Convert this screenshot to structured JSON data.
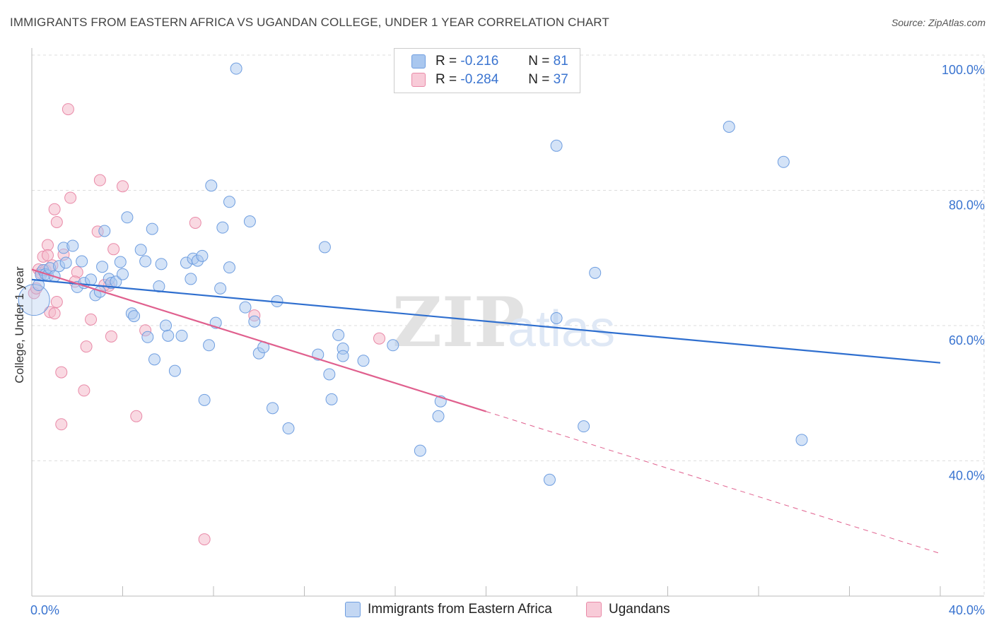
{
  "title": "IMMIGRANTS FROM EASTERN AFRICA VS UGANDAN COLLEGE, UNDER 1 YEAR CORRELATION CHART",
  "source": "Source: ZipAtlas.com",
  "watermark": {
    "zip": "ZIP",
    "atlas": "atlas"
  },
  "legend": {
    "series1": {
      "r_label": "R =",
      "r_value": "-0.216",
      "n_label": "N =",
      "n_value": "81"
    },
    "series2": {
      "r_label": "R =",
      "r_value": "-0.284",
      "n_label": "N =",
      "n_value": "37"
    }
  },
  "bottom_legend": {
    "series1": "Immigrants from Eastern Africa",
    "series2": "Ugandans"
  },
  "colors": {
    "series1_fill": "#a9c7ef",
    "series1_stroke": "#6f9ee0",
    "series1_line": "#2f6fcf",
    "series2_fill": "#f4b9cb",
    "series2_stroke": "#e98aa8",
    "series2_line": "#e0608e",
    "grid": "#dddddd",
    "tick_label": "#3a74d0"
  },
  "chart_data": {
    "type": "scatter",
    "title": "IMMIGRANTS FROM EASTERN AFRICA VS UGANDAN COLLEGE, UNDER 1 YEAR CORRELATION CHART",
    "xlabel": "",
    "ylabel": "College, Under 1 year",
    "xlim": [
      0,
      40
    ],
    "ylim": [
      20,
      100
    ],
    "x_tick_labels": [
      "0.0%",
      "40.0%"
    ],
    "y_ticks": [
      40,
      60,
      80,
      100
    ],
    "y_tick_labels": [
      "40.0%",
      "60.0%",
      "80.0%",
      "100.0%"
    ],
    "grid": true,
    "series": [
      {
        "name": "Immigrants from Eastern Africa",
        "points": [
          [
            0.1,
            63.8
          ],
          [
            0.4,
            67.5
          ],
          [
            0.5,
            68.2
          ],
          [
            0.6,
            67.6
          ],
          [
            0.7,
            67.4
          ],
          [
            0.8,
            68.5
          ],
          [
            1.0,
            67.3
          ],
          [
            1.2,
            68.8
          ],
          [
            1.4,
            71.5
          ],
          [
            1.5,
            69.3
          ],
          [
            1.8,
            71.8
          ],
          [
            2.0,
            65.7
          ],
          [
            2.2,
            69.5
          ],
          [
            2.3,
            66.3
          ],
          [
            2.6,
            66.8
          ],
          [
            2.8,
            64.5
          ],
          [
            3.0,
            65.0
          ],
          [
            3.1,
            68.7
          ],
          [
            3.2,
            74.0
          ],
          [
            3.4,
            66.9
          ],
          [
            3.5,
            66.3
          ],
          [
            3.7,
            66.5
          ],
          [
            3.9,
            69.4
          ],
          [
            4.0,
            67.6
          ],
          [
            4.2,
            76.0
          ],
          [
            4.4,
            61.8
          ],
          [
            4.5,
            61.4
          ],
          [
            4.8,
            71.2
          ],
          [
            5.0,
            69.5
          ],
          [
            5.1,
            58.3
          ],
          [
            5.3,
            74.3
          ],
          [
            5.4,
            55.0
          ],
          [
            5.6,
            65.8
          ],
          [
            5.7,
            69.1
          ],
          [
            5.9,
            60.0
          ],
          [
            6.0,
            58.5
          ],
          [
            6.3,
            53.3
          ],
          [
            6.6,
            58.5
          ],
          [
            6.8,
            69.3
          ],
          [
            7.0,
            66.9
          ],
          [
            7.1,
            69.9
          ],
          [
            7.3,
            69.6
          ],
          [
            7.5,
            70.3
          ],
          [
            7.6,
            49.0
          ],
          [
            7.8,
            57.1
          ],
          [
            7.9,
            80.7
          ],
          [
            8.1,
            60.4
          ],
          [
            8.3,
            65.5
          ],
          [
            8.4,
            74.5
          ],
          [
            8.7,
            78.3
          ],
          [
            8.7,
            68.6
          ],
          [
            9.0,
            98.0
          ],
          [
            9.4,
            62.7
          ],
          [
            9.6,
            75.4
          ],
          [
            9.8,
            60.6
          ],
          [
            10.0,
            55.9
          ],
          [
            10.2,
            56.8
          ],
          [
            10.6,
            47.8
          ],
          [
            10.8,
            63.6
          ],
          [
            11.3,
            44.8
          ],
          [
            12.6,
            55.7
          ],
          [
            12.9,
            71.6
          ],
          [
            13.1,
            52.8
          ],
          [
            13.2,
            49.1
          ],
          [
            13.5,
            58.6
          ],
          [
            13.7,
            56.6
          ],
          [
            13.7,
            55.5
          ],
          [
            14.6,
            54.8
          ],
          [
            15.9,
            57.1
          ],
          [
            17.1,
            41.5
          ],
          [
            17.9,
            46.6
          ],
          [
            18.0,
            48.8
          ],
          [
            22.8,
            37.2
          ],
          [
            23.1,
            61.1
          ],
          [
            23.1,
            86.6
          ],
          [
            24.3,
            45.1
          ],
          [
            24.8,
            67.8
          ],
          [
            30.7,
            89.4
          ],
          [
            33.1,
            84.2
          ],
          [
            33.9,
            43.1
          ],
          [
            0.3,
            66.0
          ]
        ]
      },
      {
        "name": "Ugandans",
        "points": [
          [
            0.1,
            64.8
          ],
          [
            0.2,
            65.5
          ],
          [
            0.3,
            68.3
          ],
          [
            0.4,
            67.8
          ],
          [
            0.5,
            70.2
          ],
          [
            0.6,
            68.2
          ],
          [
            0.7,
            71.9
          ],
          [
            0.7,
            70.4
          ],
          [
            0.8,
            62.0
          ],
          [
            0.9,
            68.9
          ],
          [
            1.0,
            61.8
          ],
          [
            1.0,
            77.2
          ],
          [
            1.1,
            75.3
          ],
          [
            1.1,
            63.5
          ],
          [
            1.3,
            53.1
          ],
          [
            1.3,
            45.4
          ],
          [
            1.4,
            70.5
          ],
          [
            1.6,
            92.0
          ],
          [
            1.7,
            78.9
          ],
          [
            2.0,
            67.9
          ],
          [
            2.3,
            50.4
          ],
          [
            2.4,
            56.9
          ],
          [
            2.6,
            60.9
          ],
          [
            2.9,
            73.9
          ],
          [
            3.0,
            81.5
          ],
          [
            3.4,
            65.9
          ],
          [
            3.5,
            58.4
          ],
          [
            3.6,
            71.3
          ],
          [
            4.0,
            80.6
          ],
          [
            4.6,
            46.6
          ],
          [
            5.0,
            59.3
          ],
          [
            7.2,
            75.2
          ],
          [
            7.6,
            28.4
          ],
          [
            9.8,
            61.5
          ],
          [
            15.3,
            58.1
          ],
          [
            3.2,
            66.0
          ],
          [
            1.9,
            66.5
          ]
        ]
      }
    ],
    "trend_lines": [
      {
        "name": "Immigrants from Eastern Africa",
        "x": [
          0,
          40
        ],
        "y": [
          66.8,
          54.5
        ],
        "style": "solid"
      },
      {
        "name": "Ugandans",
        "x": [
          0,
          20
        ],
        "y": [
          68.3,
          47.3
        ],
        "style": "solid"
      },
      {
        "name": "Ugandans",
        "x": [
          20,
          40
        ],
        "y": [
          47.3,
          26.3
        ],
        "style": "dashed"
      }
    ]
  }
}
